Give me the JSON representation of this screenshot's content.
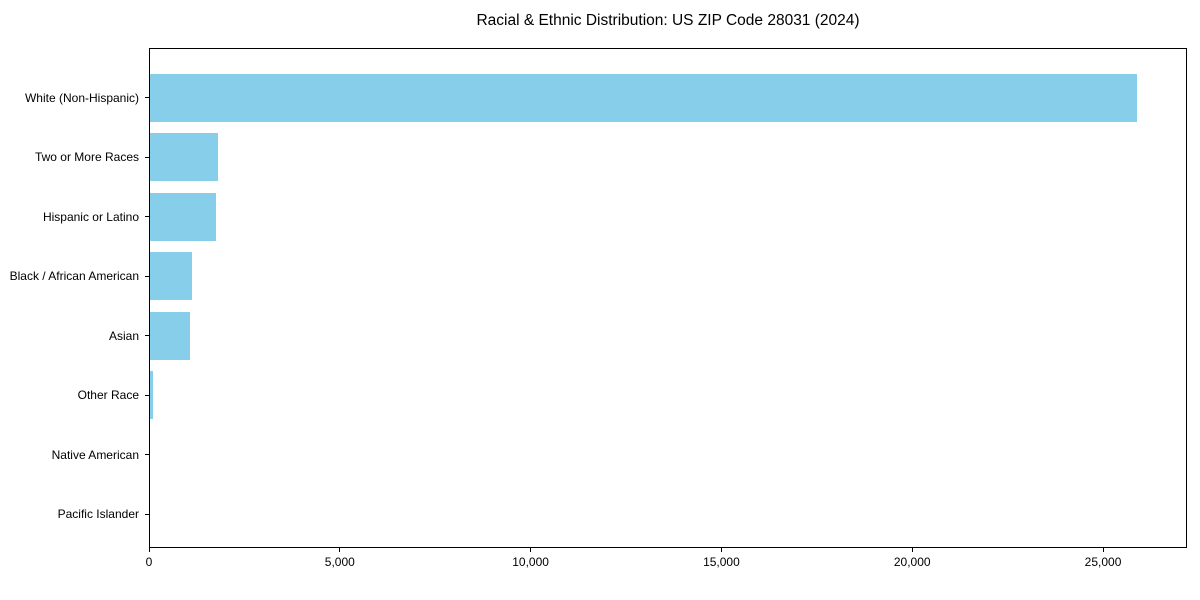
{
  "chart_data": {
    "type": "bar",
    "orientation": "horizontal",
    "title": "Racial & Ethnic Distribution: US ZIP Code 28031 (2024)",
    "categories": [
      "White (Non-Hispanic)",
      "Two or More Races",
      "Hispanic or Latino",
      "Black / African American",
      "Asian",
      "Other Race",
      "Native American",
      "Pacific Islander"
    ],
    "values": [
      25900,
      1800,
      1750,
      1130,
      1080,
      100,
      25,
      10
    ],
    "xlabel": "",
    "ylabel": "",
    "xlim": [
      0,
      27200
    ],
    "xticks": [
      0,
      5000,
      10000,
      15000,
      20000,
      25000
    ],
    "xtick_labels": [
      "0",
      "5,000",
      "10,000",
      "15,000",
      "20,000",
      "25,000"
    ],
    "bar_color": "#87CEEB",
    "axis_color": "#000000",
    "text_color": "#000000",
    "background_color": "#FFFFFF",
    "grid": false,
    "legend": null
  }
}
